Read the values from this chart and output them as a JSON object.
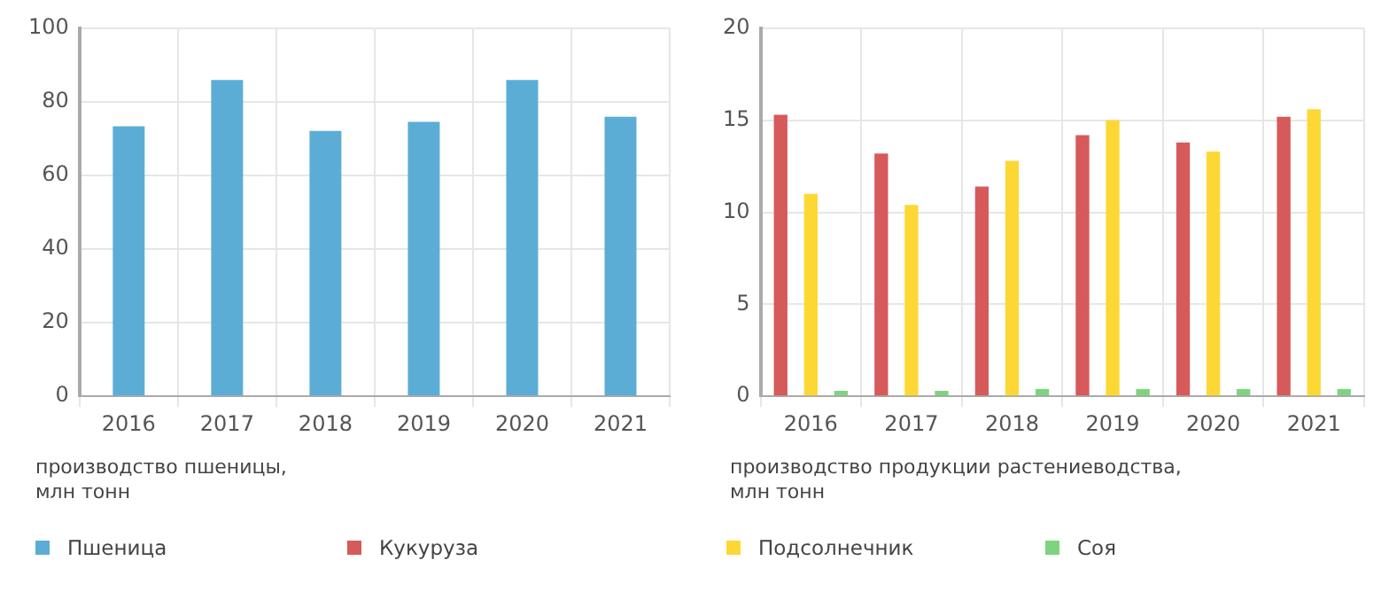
{
  "chart_data": [
    {
      "type": "bar",
      "ylabel": "производство пшеницы,\nмлн тонн",
      "categories": [
        "2016",
        "2017",
        "2018",
        "2019",
        "2020",
        "2021"
      ],
      "series": [
        {
          "name": "Пшеница",
          "color": "#5badd6",
          "values": [
            73.4,
            86.0,
            72.1,
            74.6,
            86.0,
            76.0
          ]
        }
      ],
      "ylim": [
        0,
        100
      ],
      "yticks": [
        0,
        20,
        40,
        60,
        80,
        100
      ],
      "grid": true,
      "legend": "bottom"
    },
    {
      "type": "bar",
      "ylabel": "производство продукции растениеводства,\nмлн тонн",
      "categories": [
        "2016",
        "2017",
        "2018",
        "2019",
        "2020",
        "2021"
      ],
      "series": [
        {
          "name": "Кукуруза",
          "color": "#d65a5a",
          "values": [
            15.3,
            13.2,
            11.4,
            14.2,
            13.8,
            15.2
          ]
        },
        {
          "name": "Подсолнечник",
          "color": "#fdd835",
          "values": [
            11.0,
            10.4,
            12.8,
            15.0,
            13.3,
            15.6
          ]
        },
        {
          "name": "Соя",
          "color": "#7ed47e",
          "values": [
            0.3,
            0.3,
            0.4,
            0.4,
            0.4,
            0.4
          ]
        }
      ],
      "ylim": [
        0,
        20
      ],
      "yticks": [
        0,
        5,
        10,
        15,
        20
      ],
      "grid": true,
      "legend": "bottom"
    }
  ]
}
